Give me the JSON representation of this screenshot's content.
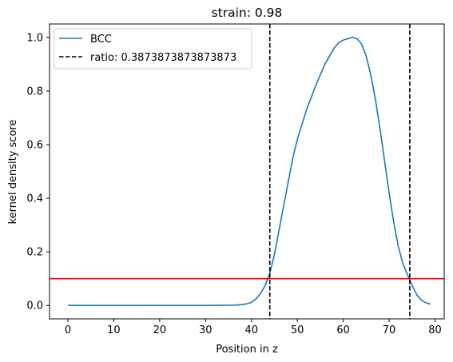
{
  "chart_data": {
    "type": "line",
    "title": "strain: 0.98",
    "xlabel": "Position in z",
    "ylabel": "kernel density score",
    "xlim": [
      -4,
      82
    ],
    "ylim": [
      -0.05,
      1.05
    ],
    "xticks": [
      0,
      10,
      20,
      30,
      40,
      50,
      60,
      70,
      80
    ],
    "yticks": [
      0.0,
      0.2,
      0.4,
      0.6,
      0.8,
      1.0
    ],
    "ytick_labels": [
      "0.0",
      "0.2",
      "0.4",
      "0.6",
      "0.8",
      "1.0"
    ],
    "grid": false,
    "legend_position": "top-left",
    "series": [
      {
        "name": "BCC",
        "color": "#1f77b4",
        "style": "solid",
        "x": [
          0,
          10,
          20,
          30,
          36,
          38,
          39,
          40,
          41,
          42,
          43,
          44,
          45,
          46,
          47,
          48,
          49,
          50,
          52,
          54,
          56,
          58,
          59,
          60,
          62,
          63,
          64,
          65,
          66,
          67,
          68,
          69,
          70,
          71,
          72,
          73,
          74,
          75,
          76,
          77,
          78,
          79
        ],
        "y": [
          0.0,
          0.0,
          0.0,
          0.0,
          0.001,
          0.003,
          0.006,
          0.012,
          0.025,
          0.045,
          0.075,
          0.12,
          0.19,
          0.28,
          0.37,
          0.46,
          0.55,
          0.62,
          0.73,
          0.82,
          0.9,
          0.96,
          0.98,
          0.99,
          1.0,
          0.995,
          0.975,
          0.93,
          0.86,
          0.77,
          0.66,
          0.54,
          0.42,
          0.31,
          0.22,
          0.155,
          0.115,
          0.075,
          0.04,
          0.02,
          0.01,
          0.005
        ]
      }
    ],
    "vlines": {
      "name": "ratio: 0.3873873873873873",
      "color": "#000000",
      "style": "dashed",
      "x": [
        44,
        74.5
      ]
    },
    "hline": {
      "y": 0.1,
      "color": "#ff0000"
    }
  }
}
